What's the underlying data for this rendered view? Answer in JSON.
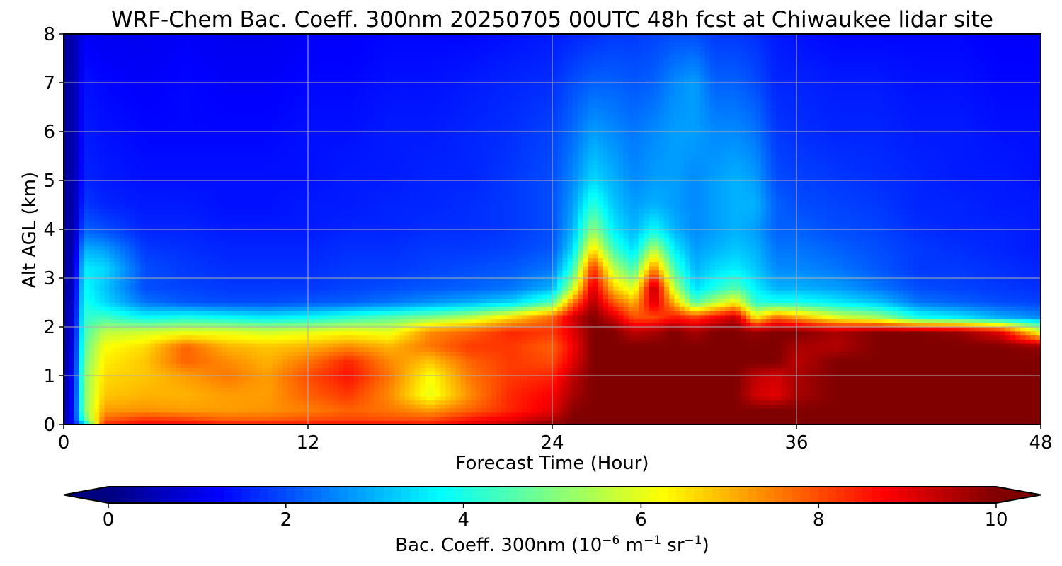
{
  "chart_data": {
    "type": "heatmap",
    "title": "WRF-Chem Bac. Coeff. 300nm  20250705 00UTC 48h fcst at Chiwaukee lidar site",
    "xlabel": "Forecast Time (Hour)",
    "ylabel": "Alt AGL (km)",
    "xlim": [
      0,
      48
    ],
    "ylim": [
      0,
      8
    ],
    "x_ticks": [
      0,
      12,
      24,
      36,
      48
    ],
    "y_ticks": [
      0,
      1,
      2,
      3,
      4,
      5,
      6,
      7,
      8
    ],
    "grid": true,
    "colorscale": "jet",
    "colorbar": {
      "orientation": "horizontal",
      "placement": "bottom",
      "range": [
        0,
        10
      ],
      "ticks": [
        0,
        2,
        4,
        6,
        8,
        10
      ],
      "extend": "both",
      "label_main": "Bac. Coeff. 300nm  (10",
      "label_exp1": "−6",
      "label_mid": " m",
      "label_exp2": "−1",
      "label_mid2": " sr",
      "label_exp3": "−1",
      "label_end": ")"
    },
    "x": [
      0,
      0.5,
      1,
      2,
      4,
      6,
      8,
      10,
      12,
      14,
      16,
      18,
      20,
      22,
      24,
      25,
      26,
      27,
      28,
      29,
      30,
      31,
      32,
      33,
      34,
      35,
      36,
      38,
      40,
      42,
      44,
      46,
      48
    ],
    "y": [
      0,
      0.1,
      0.3,
      0.6,
      1.0,
      1.3,
      1.6,
      1.9,
      2.2,
      2.5,
      2.8,
      3.2,
      3.6,
      4.0,
      4.5,
      5.0,
      6.0,
      7.0,
      8.0
    ],
    "z": [
      [
        0.3,
        1.2,
        3.0,
        8.4,
        8.8,
        8.8,
        8.6,
        8.6,
        8.6,
        8.7,
        8.7,
        8.6,
        9.0,
        9.4,
        9.9,
        10,
        10,
        10,
        10,
        10,
        10,
        10,
        10,
        10,
        10,
        10,
        10,
        10,
        10,
        10,
        10,
        10,
        10
      ],
      [
        0.3,
        1.5,
        4.5,
        7.8,
        8.3,
        8.1,
        7.8,
        7.8,
        8.0,
        8.1,
        8.0,
        8.0,
        8.6,
        9.0,
        9.5,
        10,
        10,
        10,
        10,
        10,
        10,
        10,
        10,
        10,
        10,
        10,
        10,
        10,
        10,
        10,
        10,
        10,
        10
      ],
      [
        0.3,
        1.5,
        5.0,
        7.2,
        7.3,
        7.2,
        7.2,
        7.3,
        7.5,
        7.8,
        7.6,
        7.2,
        7.8,
        8.4,
        9.0,
        9.9,
        10,
        10,
        10,
        10,
        10,
        10,
        10,
        10,
        10,
        10,
        10,
        10,
        10,
        10,
        10,
        10,
        10
      ],
      [
        0.3,
        1.4,
        5.0,
        6.8,
        7.0,
        7.0,
        7.2,
        7.2,
        7.8,
        8.2,
        7.4,
        6.0,
        7.4,
        8.4,
        8.8,
        9.6,
        10,
        10,
        10,
        10,
        10,
        10,
        10,
        10,
        9.2,
        9.0,
        9.6,
        10,
        10,
        10,
        10,
        10,
        10
      ],
      [
        0.3,
        1.3,
        5.0,
        6.6,
        6.8,
        7.2,
        7.6,
        7.2,
        8.0,
        8.6,
        7.6,
        6.2,
        7.6,
        8.2,
        8.4,
        9.4,
        10,
        10,
        10,
        10,
        10,
        10,
        10,
        10,
        9.4,
        9.2,
        9.6,
        10,
        10,
        10,
        10,
        10,
        10
      ],
      [
        0.3,
        1.2,
        4.8,
        6.4,
        6.8,
        7.8,
        7.4,
        7.0,
        7.6,
        8.4,
        7.4,
        6.8,
        7.8,
        8.2,
        8.0,
        9.0,
        10,
        10,
        10,
        10,
        10,
        10,
        10,
        10,
        10,
        10,
        9.4,
        10,
        10,
        10,
        10,
        10,
        10
      ],
      [
        0.3,
        1.1,
        4.6,
        6.2,
        6.6,
        7.8,
        7.0,
        6.8,
        7.0,
        7.4,
        7.0,
        7.6,
        8.2,
        8.2,
        7.8,
        8.8,
        10,
        10,
        10,
        10,
        10,
        10,
        10,
        10,
        10,
        10,
        9.6,
        9.5,
        10,
        10,
        10,
        10,
        9.8
      ],
      [
        0.3,
        1.0,
        4.4,
        5.6,
        5.8,
        6.0,
        6.0,
        5.8,
        6.0,
        6.2,
        6.0,
        7.4,
        7.8,
        8.4,
        8.2,
        9.0,
        10,
        10,
        9.4,
        9.6,
        10,
        9.6,
        10,
        10,
        9.8,
        10,
        10,
        9.6,
        10,
        10,
        9.8,
        9.0,
        6.0
      ],
      [
        0.3,
        0.9,
        4.2,
        4.4,
        3.8,
        4.0,
        3.8,
        3.6,
        3.8,
        4.2,
        4.6,
        5.0,
        5.6,
        6.6,
        7.8,
        9.2,
        10,
        9.2,
        8.0,
        8.0,
        8.6,
        8.2,
        8.8,
        9.4,
        6.4,
        7.8,
        7.2,
        6.0,
        5.4,
        4.0,
        3.6,
        3.0,
        2.6
      ],
      [
        0.3,
        0.8,
        4.0,
        3.4,
        2.4,
        2.1,
        2.0,
        2.0,
        2.1,
        2.2,
        2.4,
        2.7,
        3.0,
        3.4,
        4.6,
        7.6,
        9.6,
        8.0,
        7.0,
        9.2,
        7.0,
        4.6,
        5.6,
        6.4,
        4.2,
        4.0,
        4.0,
        3.6,
        3.2,
        2.4,
        2.2,
        2.0,
        1.9
      ],
      [
        0.3,
        0.7,
        3.8,
        3.2,
        2.0,
        1.9,
        1.8,
        1.8,
        1.8,
        1.9,
        2.0,
        2.1,
        2.2,
        2.4,
        3.0,
        5.6,
        9.2,
        6.8,
        5.8,
        9.6,
        5.6,
        3.4,
        4.0,
        4.6,
        3.6,
        3.0,
        3.0,
        2.8,
        2.4,
        2.0,
        1.9,
        1.8,
        1.7
      ],
      [
        0.3,
        0.6,
        3.6,
        3.4,
        2.0,
        1.8,
        1.7,
        1.7,
        1.7,
        1.8,
        1.8,
        1.9,
        2.0,
        2.1,
        2.4,
        4.2,
        8.4,
        5.6,
        4.4,
        7.6,
        4.4,
        3.0,
        3.4,
        3.6,
        3.2,
        2.6,
        2.6,
        2.4,
        2.1,
        1.8,
        1.8,
        1.7,
        1.6
      ],
      [
        0.3,
        0.5,
        3.0,
        2.8,
        1.8,
        1.7,
        1.6,
        1.6,
        1.6,
        1.7,
        1.7,
        1.8,
        1.8,
        1.9,
        2.1,
        3.4,
        6.6,
        4.4,
        3.4,
        5.6,
        3.6,
        2.8,
        3.0,
        3.2,
        3.0,
        2.4,
        2.4,
        2.2,
        2.0,
        1.8,
        1.7,
        1.6,
        1.5
      ],
      [
        0.3,
        0.4,
        2.2,
        2.0,
        1.6,
        1.6,
        1.5,
        1.5,
        1.5,
        1.6,
        1.6,
        1.7,
        1.7,
        1.8,
        2.0,
        3.0,
        5.2,
        3.6,
        3.0,
        3.8,
        3.0,
        2.6,
        2.8,
        3.0,
        2.8,
        2.2,
        2.2,
        2.0,
        1.9,
        1.7,
        1.6,
        1.6,
        1.5
      ],
      [
        0.3,
        0.4,
        1.8,
        1.6,
        1.5,
        1.5,
        1.4,
        1.4,
        1.5,
        1.5,
        1.6,
        1.6,
        1.7,
        1.8,
        2.0,
        2.8,
        4.2,
        3.2,
        2.8,
        3.0,
        2.8,
        2.6,
        2.8,
        3.0,
        3.0,
        2.2,
        2.0,
        1.9,
        1.8,
        1.6,
        1.6,
        1.5,
        1.5
      ],
      [
        0.3,
        0.4,
        1.6,
        1.5,
        1.4,
        1.4,
        1.4,
        1.4,
        1.4,
        1.5,
        1.5,
        1.6,
        1.6,
        1.8,
        2.0,
        2.6,
        3.4,
        3.0,
        2.6,
        2.8,
        2.8,
        2.6,
        2.8,
        3.0,
        2.8,
        2.0,
        1.9,
        1.8,
        1.7,
        1.6,
        1.5,
        1.5,
        1.4
      ],
      [
        0.3,
        0.4,
        1.5,
        1.4,
        1.3,
        1.3,
        1.3,
        1.3,
        1.4,
        1.4,
        1.5,
        1.5,
        1.6,
        1.7,
        1.9,
        2.3,
        2.8,
        2.6,
        2.4,
        2.6,
        2.8,
        2.8,
        2.6,
        2.6,
        2.4,
        1.8,
        1.7,
        1.6,
        1.6,
        1.5,
        1.5,
        1.4,
        1.4
      ],
      [
        0.3,
        0.4,
        1.4,
        1.3,
        1.2,
        1.3,
        1.2,
        1.2,
        1.3,
        1.3,
        1.4,
        1.4,
        1.5,
        1.6,
        1.7,
        2.0,
        2.2,
        2.2,
        2.1,
        2.2,
        2.6,
        2.8,
        2.2,
        2.2,
        2.0,
        1.6,
        1.6,
        1.5,
        1.5,
        1.4,
        1.4,
        1.3,
        1.3
      ],
      [
        0.3,
        0.4,
        1.2,
        1.1,
        1.1,
        1.2,
        1.1,
        1.1,
        1.2,
        1.2,
        1.3,
        1.3,
        1.3,
        1.4,
        1.5,
        1.6,
        1.7,
        1.8,
        1.8,
        1.9,
        2.0,
        2.0,
        1.8,
        1.8,
        1.7,
        1.5,
        1.4,
        1.3,
        1.3,
        1.3,
        1.3,
        1.2,
        1.2
      ]
    ]
  }
}
